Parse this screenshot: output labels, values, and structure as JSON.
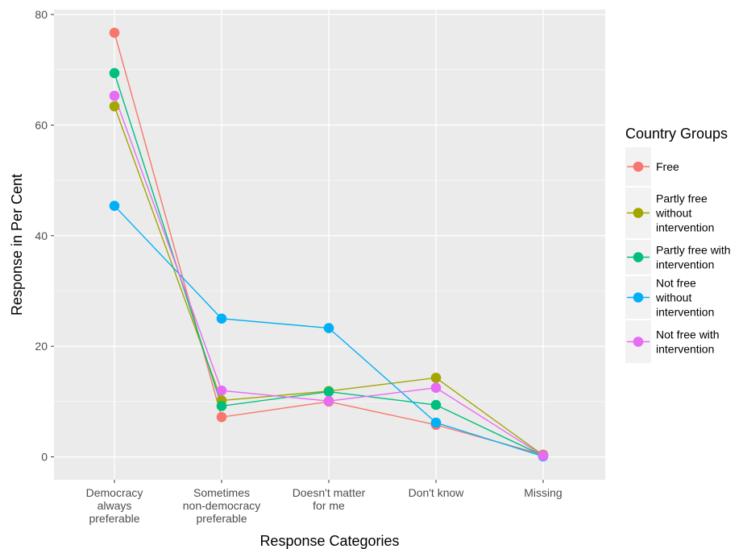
{
  "chart_data": {
    "type": "line",
    "xlabel": "Response Categories",
    "ylabel": "Response in Per Cent",
    "ylim": [
      -4,
      80
    ],
    "yticks": [
      0,
      20,
      40,
      60,
      80
    ],
    "grid": true,
    "background": "#ebebeb",
    "categories": [
      [
        "Democracy",
        "always",
        "preferable"
      ],
      [
        "Sometimes",
        "non-democracy",
        "preferable"
      ],
      [
        "Doesn't matter",
        "for me"
      ],
      [
        "Don't know"
      ],
      [
        "Missing"
      ]
    ],
    "legend": {
      "title": "Country Groups",
      "placement": "right"
    },
    "series": [
      {
        "name": "Free",
        "label_lines": [
          "Free"
        ],
        "color": "#f8766d",
        "values": [
          76.7,
          7.2,
          10.0,
          5.8,
          0.4
        ]
      },
      {
        "name": "Partly free without intervention",
        "label_lines": [
          "Partly free",
          "without",
          "intervention"
        ],
        "color": "#a3a500",
        "values": [
          63.4,
          10.2,
          11.9,
          14.3,
          0.3
        ]
      },
      {
        "name": "Partly free with intervention",
        "label_lines": [
          "Partly free with",
          "intervention"
        ],
        "color": "#00bf7d",
        "values": [
          69.4,
          9.2,
          11.8,
          9.4,
          0.2
        ]
      },
      {
        "name": "Not free without intervention",
        "label_lines": [
          "Not free",
          "without",
          "intervention"
        ],
        "color": "#00b0f6",
        "values": [
          45.4,
          25.0,
          23.3,
          6.2,
          0.1
        ]
      },
      {
        "name": "Not free with intervention",
        "label_lines": [
          "Not free with",
          "intervention"
        ],
        "color": "#e76bf3",
        "values": [
          65.3,
          12.0,
          10.1,
          12.5,
          0.2
        ]
      }
    ]
  }
}
